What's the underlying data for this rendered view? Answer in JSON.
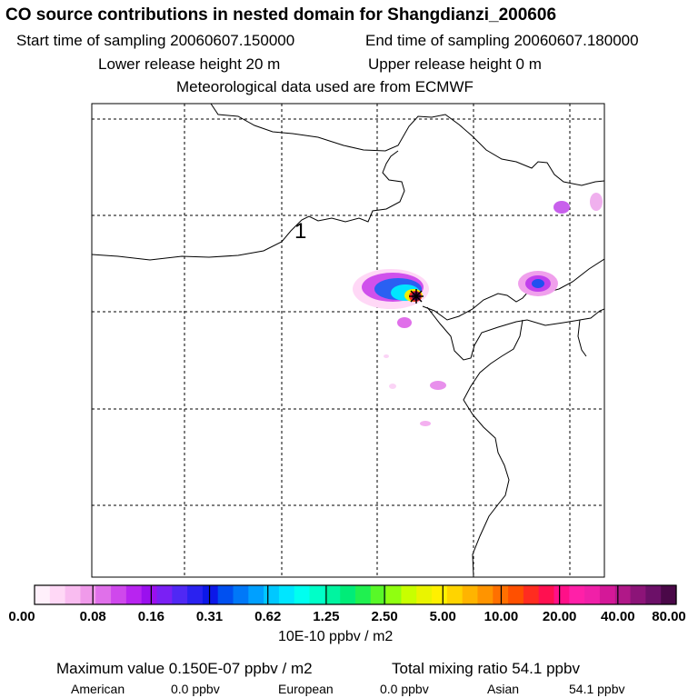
{
  "header": {
    "title": "CO  source contributions in nested domain for Shangdianzi_200606",
    "start_sampling": "Start time of sampling 20060607.150000",
    "end_sampling": "End time of sampling 20060607.180000",
    "lower_release": "Lower release height   20 m",
    "upper_release": "Upper release height    0 m",
    "met_data": "Meteorological data used are from ECMWF"
  },
  "chart_data": {
    "type": "heatmap",
    "title": "CO  source contributions in nested domain for Shangdianzi_200606",
    "map_label": "1",
    "colorbar": {
      "tick_labels": [
        "0.00",
        "0.08",
        "0.16",
        "0.31",
        "0.62",
        "1.25",
        "2.50",
        "5.00",
        "10.00",
        "20.00",
        "40.00",
        "80.00"
      ],
      "unit": "10E-10 ppbv / m2",
      "colors": [
        "#fff0fb",
        "#ffd8f6",
        "#f9bcf0",
        "#f09aea",
        "#e070ea",
        "#cf48ec",
        "#b824f0",
        "#9a10ee",
        "#7a20f4",
        "#5028f4",
        "#2a22f0",
        "#0c18e8",
        "#0050f0",
        "#0078f8",
        "#00a0ff",
        "#00c8ff",
        "#00e6ff",
        "#00fff0",
        "#00ffc8",
        "#00f4a0",
        "#00ec78",
        "#20f050",
        "#58f828",
        "#90ff10",
        "#c8ff00",
        "#eaf400",
        "#fff000",
        "#ffd400",
        "#ffb400",
        "#ff9400",
        "#ff7000",
        "#ff5000",
        "#ff2c20",
        "#ff1050",
        "#ff1088",
        "#ff20a8",
        "#f020a8",
        "#d41898",
        "#b01888",
        "#8c1478",
        "#6c1068",
        "#4a0848"
      ]
    },
    "plume_levels": [
      {
        "name": "faint",
        "level": "0.00-0.08"
      },
      {
        "name": "magenta",
        "level": "0.08-0.16"
      },
      {
        "name": "blue",
        "level": "0.31-0.62"
      },
      {
        "name": "cyan",
        "level": "0.62-1.25"
      },
      {
        "name": "yellow",
        "level": "5.00-10.00"
      },
      {
        "name": "red",
        "level": "20.00-40.00"
      },
      {
        "name": "maroon",
        "level": "40.00-80.00"
      }
    ]
  },
  "stats": {
    "max_label": "Maximum value  0.150E-07 ppbv / m2",
    "total_label": "Total mixing ratio       54.1 ppbv",
    "american_label": "American",
    "american_value": "0.0 ppbv",
    "european_label": "European",
    "european_value": "0.0 ppbv",
    "asian_label": "Asian",
    "asian_value": "54.1 ppbv"
  }
}
